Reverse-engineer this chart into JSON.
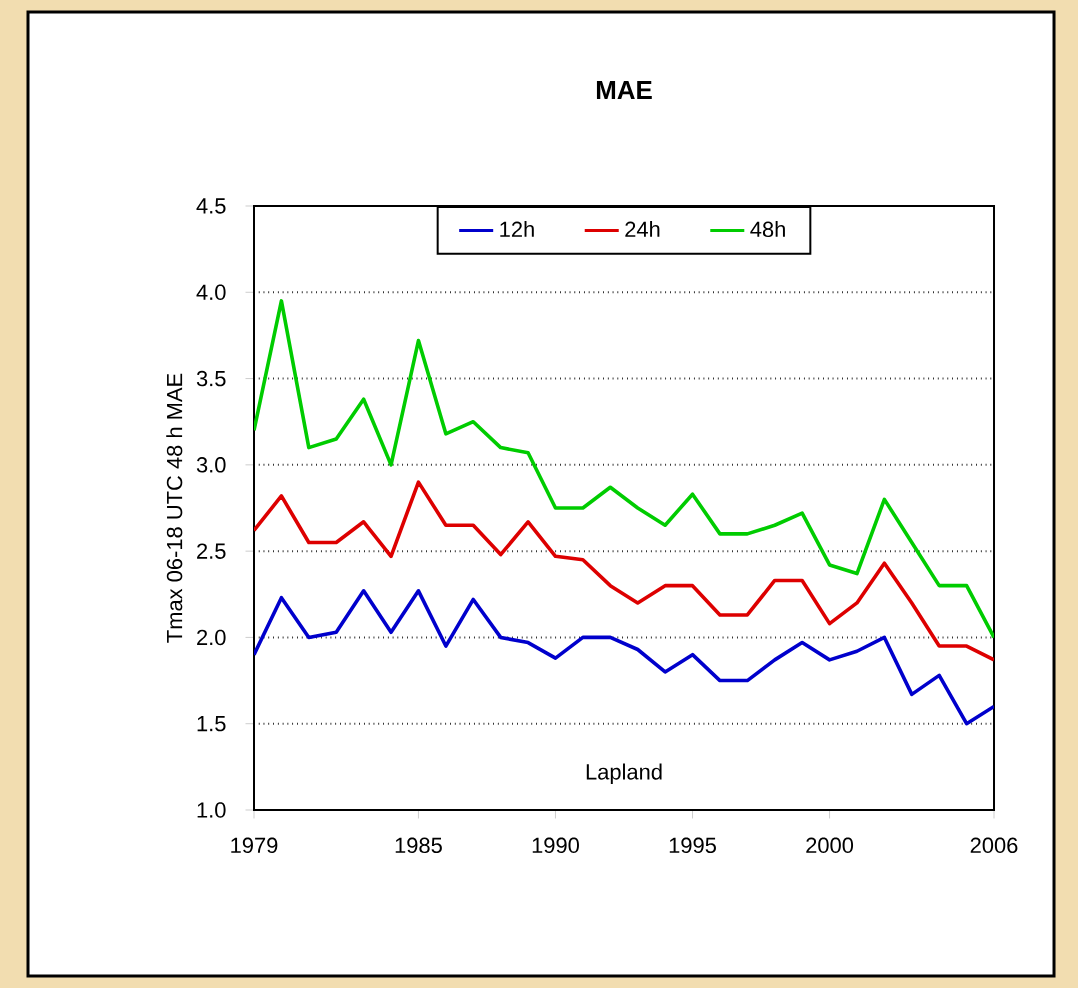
{
  "chart_data": {
    "type": "line",
    "title": "MAE",
    "ylabel": "Tmax 06-18 UTC 48 h MAE",
    "annotations": [
      "Lapland"
    ],
    "x": [
      1979,
      1980,
      1981,
      1982,
      1983,
      1984,
      1985,
      1986,
      1987,
      1988,
      1989,
      1990,
      1991,
      1992,
      1993,
      1994,
      1995,
      1996,
      1997,
      1998,
      1999,
      2000,
      2001,
      2002,
      2003,
      2004,
      2005,
      2006
    ],
    "series": [
      {
        "name": "12h",
        "color": "#0000cc",
        "values": [
          1.9,
          2.23,
          2.0,
          2.03,
          2.27,
          2.03,
          2.27,
          1.95,
          2.22,
          2.0,
          1.97,
          1.88,
          2.0,
          2.0,
          1.93,
          1.8,
          1.9,
          1.75,
          1.75,
          1.87,
          1.97,
          1.87,
          1.92,
          2.0,
          1.67,
          1.78,
          1.5,
          1.6
        ]
      },
      {
        "name": "24h",
        "color": "#dd0000",
        "values": [
          2.62,
          2.82,
          2.55,
          2.55,
          2.67,
          2.47,
          2.9,
          2.65,
          2.65,
          2.48,
          2.67,
          2.47,
          2.45,
          2.3,
          2.2,
          2.3,
          2.3,
          2.13,
          2.13,
          2.33,
          2.33,
          2.08,
          2.2,
          2.43,
          2.2,
          1.95,
          1.95,
          1.87
        ]
      },
      {
        "name": "48h",
        "color": "#00cc00",
        "values": [
          3.2,
          3.95,
          3.1,
          3.15,
          3.38,
          3.0,
          3.72,
          3.18,
          3.25,
          3.1,
          3.07,
          2.75,
          2.75,
          2.87,
          2.75,
          2.65,
          2.83,
          2.6,
          2.6,
          2.65,
          2.72,
          2.42,
          2.37,
          2.8,
          2.55,
          2.3,
          2.3,
          2.0
        ]
      }
    ],
    "xlim": [
      1979,
      2006
    ],
    "xticks": [
      1979,
      1985,
      1990,
      1995,
      2000,
      2006
    ],
    "ylim": [
      1,
      4.5
    ],
    "yticks": [
      {
        "value": 1,
        "label": "1.0"
      },
      {
        "value": 1.5,
        "label": "1.5"
      },
      {
        "value": 2,
        "label": "2.0"
      },
      {
        "value": 2.5,
        "label": "2.5"
      },
      {
        "value": 3,
        "label": "3.0"
      },
      {
        "value": 3.5,
        "label": "3.5"
      },
      {
        "value": 4,
        "label": "4.0"
      },
      {
        "value": 4.5,
        "label": "4.5"
      }
    ],
    "grid": "y",
    "legend": "top",
    "marker": "none",
    "line_style": "solid"
  }
}
